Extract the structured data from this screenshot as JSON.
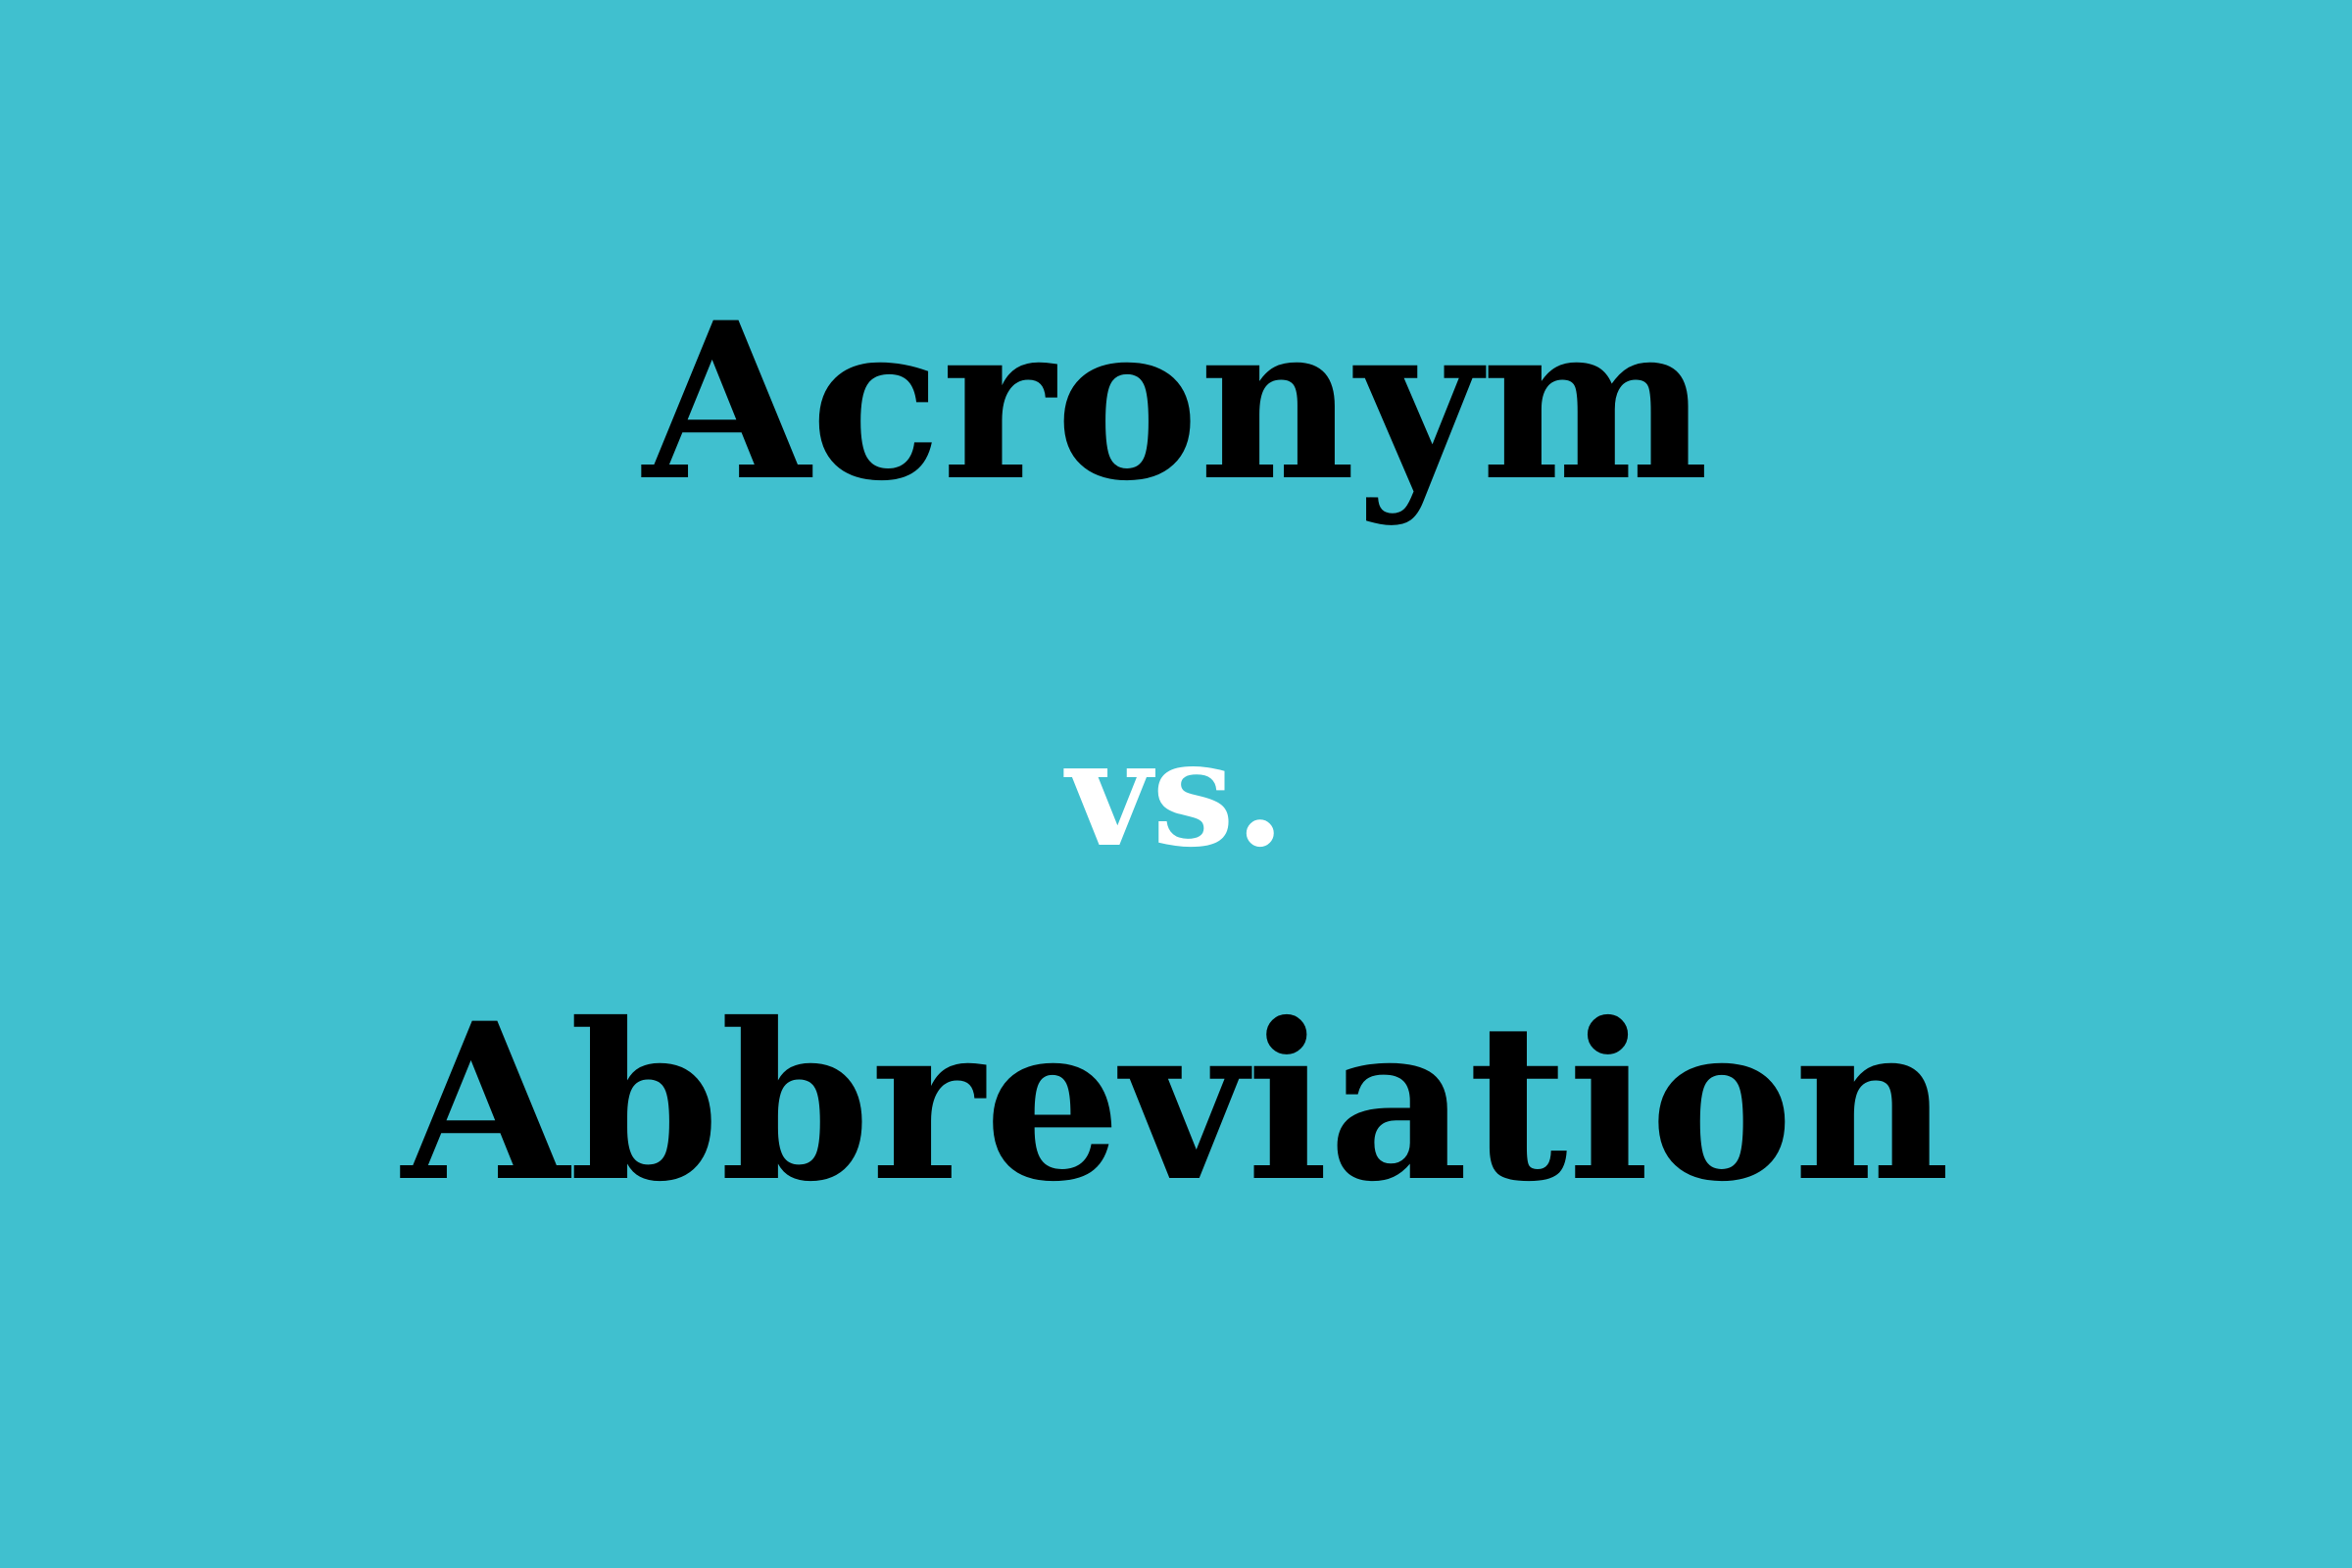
{
  "headline": {
    "first_term": "Acronym",
    "separator": "vs.",
    "second_term": "Abbreviation"
  },
  "colors": {
    "background": "#40c0cf",
    "term_text": "#000000",
    "separator_text": "#ffffff"
  }
}
